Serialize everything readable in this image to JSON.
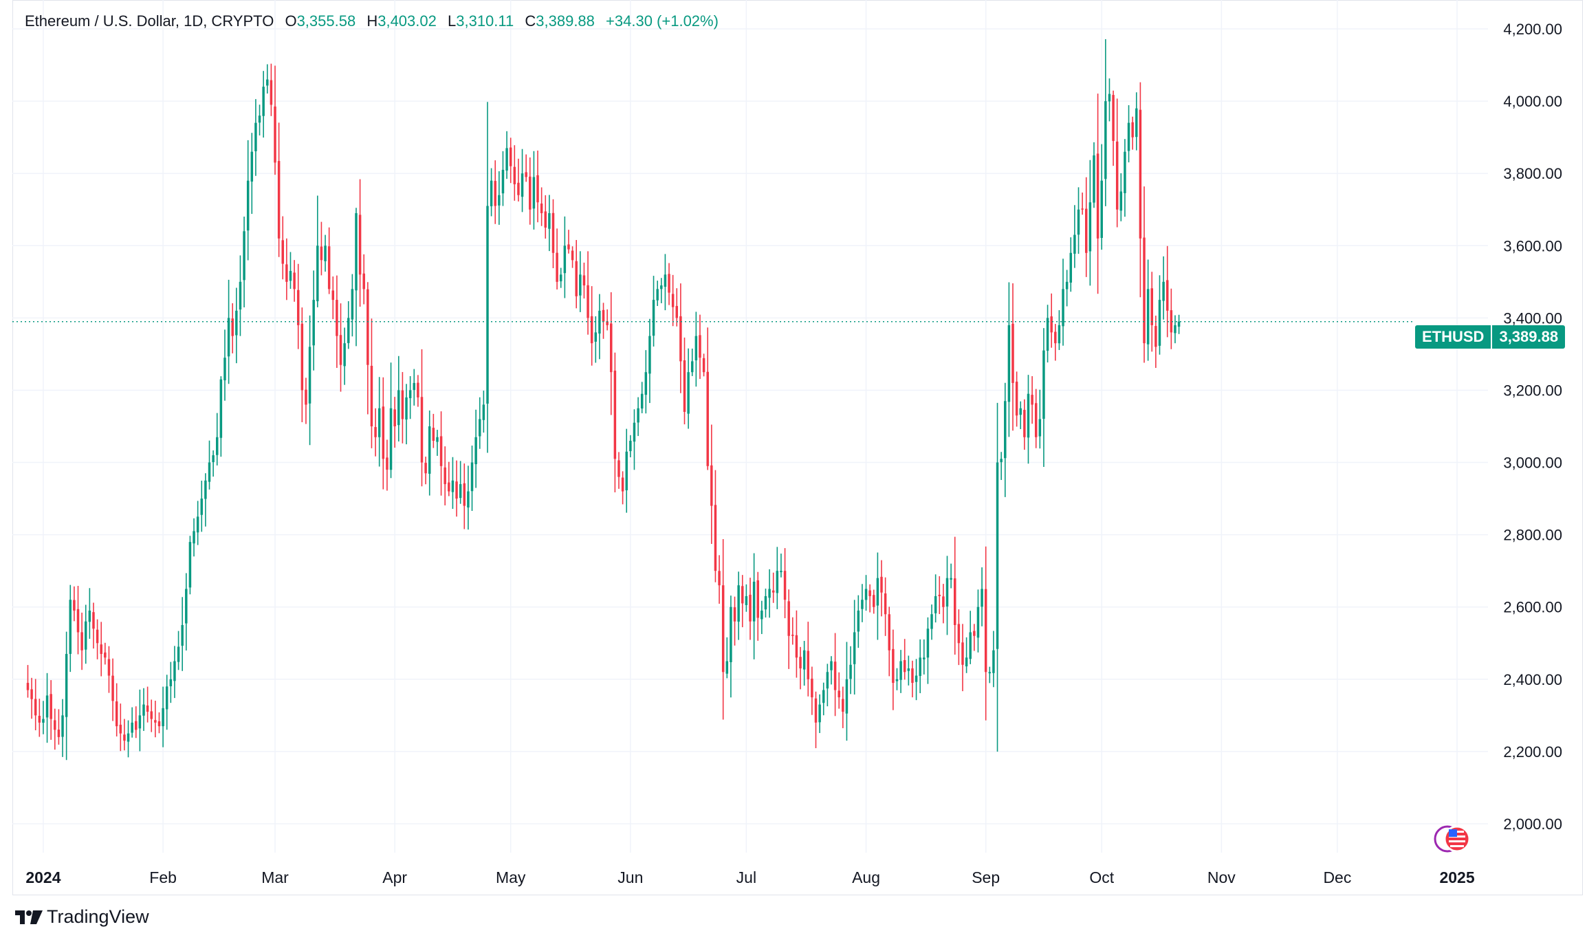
{
  "header": {
    "title": "Ethereum / U.S. Dollar, 1D, CRYPTO",
    "open_label": "O",
    "open": "3,355.58",
    "high_label": "H",
    "high": "3,403.02",
    "low_label": "L",
    "low": "3,310.11",
    "close_label": "C",
    "close": "3,389.88",
    "change": "+34.30 (+1.02%)"
  },
  "price_badge": {
    "symbol": "ETHUSD",
    "price": "3,389.88"
  },
  "brand": {
    "name": "TradingView",
    "logo_icon": "tradingview-logo-icon"
  },
  "colors": {
    "up": "#089981",
    "down": "#f23645",
    "grid": "#f0f3fa",
    "axis_text": "#131722"
  },
  "chart_data": {
    "type": "candlestick",
    "title": "Ethereum / U.S. Dollar, 1D, CRYPTO",
    "symbol": "ETHUSD",
    "interval": "1D",
    "xlim": [
      "2023-12-24",
      "2025-01-09"
    ],
    "ylim": [
      1920,
      4280
    ],
    "y_ticks": [
      2000,
      2200,
      2400,
      2600,
      2800,
      3000,
      3200,
      3400,
      3600,
      3800,
      4000,
      4200
    ],
    "y_tick_labels": [
      "2,000.00",
      "2,200.00",
      "2,400.00",
      "2,600.00",
      "2,800.00",
      "3,000.00",
      "3,200.00",
      "3,400.00",
      "3,600.00",
      "3,800.00",
      "4,000.00",
      "4,200.00"
    ],
    "x_ticks": [
      {
        "date": "2024-01-01",
        "label": "2024",
        "bold": true
      },
      {
        "date": "2024-02-01",
        "label": "Feb"
      },
      {
        "date": "2024-03-01",
        "label": "Mar"
      },
      {
        "date": "2024-04-01",
        "label": "Apr"
      },
      {
        "date": "2024-05-01",
        "label": "May"
      },
      {
        "date": "2024-06-01",
        "label": "Jun"
      },
      {
        "date": "2024-07-01",
        "label": "Jul"
      },
      {
        "date": "2024-08-01",
        "label": "Aug"
      },
      {
        "date": "2024-09-01",
        "label": "Sep"
      },
      {
        "date": "2024-10-01",
        "label": "Oct"
      },
      {
        "date": "2024-11-01",
        "label": "Nov"
      },
      {
        "date": "2024-12-01",
        "label": "Dec"
      },
      {
        "date": "2025-01-01",
        "label": "2025",
        "bold": true
      }
    ],
    "last_price": 3389.88,
    "last_price_line": "dotted",
    "grid": true,
    "close_series_start": "2023-12-28",
    "close_series": [
      2370,
      2345,
      2300,
      2280,
      2290,
      2355,
      2290,
      2260,
      2240,
      2300,
      2470,
      2620,
      2590,
      2530,
      2480,
      2560,
      2590,
      2540,
      2500,
      2470,
      2460,
      2410,
      2340,
      2270,
      2250,
      2230,
      2250,
      2280,
      2260,
      2300,
      2330,
      2310,
      2290,
      2280,
      2270,
      2320,
      2380,
      2400,
      2450,
      2490,
      2550,
      2650,
      2780,
      2810,
      2850,
      2900,
      2950,
      3000,
      3020,
      3070,
      3230,
      3290,
      3400,
      3350,
      3420,
      3500,
      3640,
      3780,
      3860,
      3940,
      3960,
      4040,
      4060,
      3990,
      3830,
      3620,
      3550,
      3500,
      3530,
      3480,
      3380,
      3200,
      3160,
      3320,
      3450,
      3600,
      3560,
      3600,
      3480,
      3450,
      3350,
      3270,
      3330,
      3400,
      3480,
      3690,
      3520,
      3480,
      3270,
      3100,
      3070,
      3150,
      3010,
      2980,
      3150,
      3100,
      3200,
      3120,
      3180,
      3200,
      3220,
      3180,
      3000,
      2970,
      3100,
      3060,
      3070,
      2990,
      2940,
      2920,
      2950,
      2900,
      2940,
      2880,
      2920,
      3000,
      3070,
      3120,
      3160,
      3710,
      3780,
      3710,
      3740,
      3810,
      3870,
      3820,
      3770,
      3740,
      3800,
      3790,
      3700,
      3790,
      3720,
      3690,
      3650,
      3690,
      3580,
      3500,
      3520,
      3600,
      3590,
      3560,
      3460,
      3520,
      3490,
      3400,
      3330,
      3360,
      3420,
      3390,
      3380,
      3250,
      3010,
      2960,
      2920,
      3030,
      3060,
      3110,
      3150,
      3190,
      3250,
      3350,
      3450,
      3480,
      3490,
      3520,
      3470,
      3430,
      3400,
      3280,
      3140,
      3250,
      3280,
      3350,
      3290,
      3250,
      2990,
      2880,
      2700,
      2660,
      2420,
      2450,
      2600,
      2560,
      2660,
      2610,
      2630,
      2560,
      2670,
      2570,
      2590,
      2630,
      2650,
      2640,
      2700,
      2700,
      2620,
      2520,
      2520,
      2460,
      2430,
      2480,
      2400,
      2350,
      2280,
      2330,
      2370,
      2420,
      2450,
      2370,
      2350,
      2310,
      2400,
      2440,
      2530,
      2590,
      2620,
      2650,
      2630,
      2600,
      2680,
      2640,
      2580,
      2480,
      2390,
      2400,
      2450,
      2420,
      2430,
      2390,
      2410,
      2460,
      2460,
      2540,
      2580,
      2630,
      2630,
      2600,
      2680,
      2680,
      2550,
      2500,
      2440,
      2460,
      2530,
      2520,
      2600,
      2650,
      2420,
      2420,
      2480,
      3000,
      3010,
      3170,
      3380,
      3220,
      3130,
      3150,
      3070,
      3190,
      3160,
      3070,
      3120,
      3310,
      3400,
      3360,
      3330,
      3380,
      3480,
      3500,
      3580,
      3630,
      3700,
      3700,
      3580,
      3720,
      3850,
      3620,
      3780,
      4000,
      4020,
      3890,
      3700,
      3750,
      3860,
      3940,
      3900,
      3980,
      3620,
      3330,
      3480,
      3380,
      3320,
      3450,
      3500,
      3420,
      3360,
      3380,
      3389.88
    ],
    "note": "close_series holds approximate daily closing prices read off the candles, one per day starting 2023-12-28; the script generates each day's open/high/low around these closes."
  }
}
